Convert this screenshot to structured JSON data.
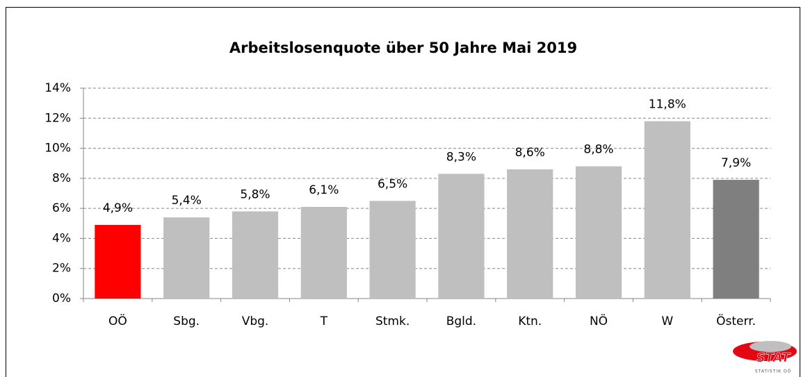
{
  "chart_data": {
    "type": "bar",
    "title": "Arbeitslosenquote über 50 Jahre Mai 2019",
    "categories": [
      "OÖ",
      "Sbg.",
      "Vbg.",
      "T",
      "Stmk.",
      "Bgld.",
      "Ktn.",
      "NÖ",
      "W",
      "Österr."
    ],
    "values": [
      4.9,
      5.4,
      5.8,
      6.1,
      6.5,
      8.3,
      8.6,
      8.8,
      11.8,
      7.9
    ],
    "value_labels": [
      "4,9%",
      "5,4%",
      "5,8%",
      "6,1%",
      "6,5%",
      "8,3%",
      "8,6%",
      "8,8%",
      "11,8%",
      "7,9%"
    ],
    "colors": [
      "#ff0000",
      "#bfbfbf",
      "#bfbfbf",
      "#bfbfbf",
      "#bfbfbf",
      "#bfbfbf",
      "#bfbfbf",
      "#bfbfbf",
      "#bfbfbf",
      "#7f7f7f"
    ],
    "ylim": [
      0,
      14
    ],
    "yticks": [
      {
        "value": 0,
        "label": "0%"
      },
      {
        "value": 2,
        "label": "2%"
      },
      {
        "value": 4,
        "label": "4%"
      },
      {
        "value": 6,
        "label": "6%"
      },
      {
        "value": 8,
        "label": "8%"
      },
      {
        "value": 10,
        "label": "10%"
      },
      {
        "value": 12,
        "label": "12%"
      },
      {
        "value": 14,
        "label": "14%"
      }
    ],
    "grid": true
  },
  "logo": {
    "text": "STAT",
    "subtext": "STATISTIK OÖ"
  }
}
